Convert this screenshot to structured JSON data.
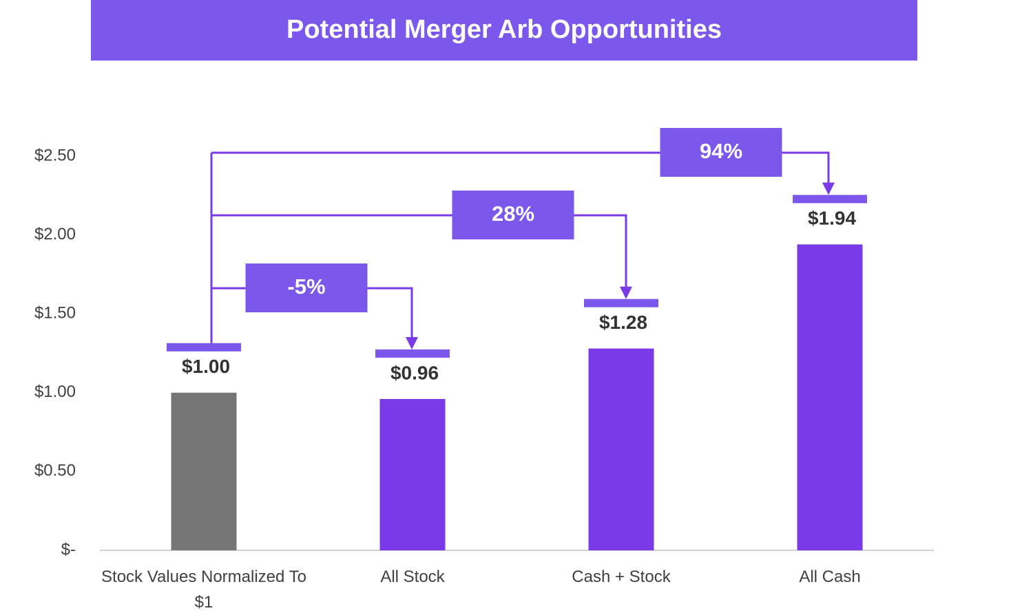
{
  "chart_data": {
    "type": "bar",
    "title": "Potential Merger Arb Opportunities",
    "categories": [
      "Stock Values Normalized To $1",
      "All Stock",
      "Cash + Stock",
      "All Cash"
    ],
    "values": [
      1.0,
      0.96,
      1.28,
      1.94
    ],
    "value_labels": [
      "$1.00",
      "$0.96",
      "$1.28",
      "$1.94"
    ],
    "colors": [
      "#767676",
      "#7b3ae8",
      "#7b3ae8",
      "#7b3ae8"
    ],
    "annotations": [
      "-5%",
      "28%",
      "94%"
    ],
    "ylim": [
      0,
      2.5
    ],
    "yticks": [
      {
        "value": 0,
        "label": "$-"
      },
      {
        "value": 0.5,
        "label": "$0.50"
      },
      {
        "value": 1,
        "label": "$1.00"
      },
      {
        "value": 1.5,
        "label": "$1.50"
      },
      {
        "value": 2,
        "label": "$2.00"
      },
      {
        "value": 2.5,
        "label": "$2.50"
      }
    ],
    "grid": false
  }
}
